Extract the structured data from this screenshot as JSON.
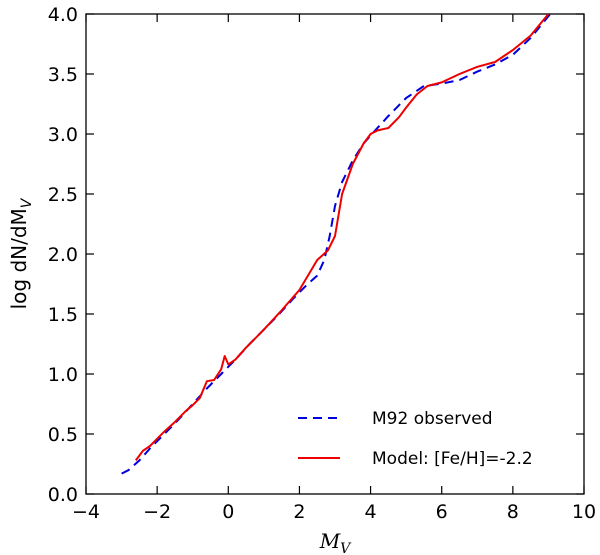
{
  "chart_data": {
    "type": "line",
    "title": "",
    "xlabel": "M_V",
    "ylabel_prefix": "log dN/dM",
    "ylabel_sub": "V",
    "xlabel_main": "M",
    "xlabel_sub": "V",
    "xlim": [
      -4,
      10
    ],
    "ylim": [
      0.0,
      4.0
    ],
    "xticks": [
      "−4",
      "−2",
      "0",
      "2",
      "4",
      "6",
      "8",
      "10"
    ],
    "xtick_values": [
      -4,
      -2,
      0,
      2,
      4,
      6,
      8,
      10
    ],
    "yticks": [
      "0.0",
      "0.5",
      "1.0",
      "1.5",
      "2.0",
      "2.5",
      "3.0",
      "3.5",
      "4.0"
    ],
    "ytick_values": [
      0.0,
      0.5,
      1.0,
      1.5,
      2.0,
      2.5,
      3.0,
      3.5,
      4.0
    ],
    "legend_position": "lower-right",
    "series": [
      {
        "name": "M92 observed",
        "style": "dashed",
        "color": "#0000dd",
        "x": [
          -3.0,
          -2.8,
          -2.5,
          -2.2,
          -1.8,
          -1.4,
          -1.0,
          -0.6,
          -0.2,
          0.2,
          0.6,
          1.0,
          1.4,
          1.8,
          2.2,
          2.5,
          2.7,
          2.85,
          3.0,
          3.2,
          3.5,
          3.8,
          4.1,
          4.5,
          5.0,
          5.5,
          6.0,
          6.5,
          7.0,
          7.5,
          8.0,
          8.5,
          9.05
        ],
        "y": [
          0.17,
          0.2,
          0.28,
          0.38,
          0.5,
          0.62,
          0.75,
          0.88,
          1.0,
          1.12,
          1.25,
          1.37,
          1.49,
          1.62,
          1.74,
          1.82,
          1.95,
          2.15,
          2.4,
          2.6,
          2.78,
          2.92,
          3.02,
          3.15,
          3.3,
          3.4,
          3.42,
          3.45,
          3.52,
          3.58,
          3.66,
          3.8,
          4.0
        ]
      },
      {
        "name": "Model: [Fe/H]=-2.2",
        "style": "solid",
        "color": "#ee0000",
        "x": [
          -2.6,
          -2.4,
          -2.2,
          -2.0,
          -1.8,
          -1.5,
          -1.2,
          -1.0,
          -0.8,
          -0.6,
          -0.4,
          -0.2,
          -0.1,
          0.0,
          0.2,
          0.5,
          1.0,
          1.5,
          2.0,
          2.3,
          2.5,
          2.8,
          3.0,
          3.2,
          3.5,
          3.8,
          4.0,
          4.2,
          4.5,
          4.8,
          5.0,
          5.3,
          5.6,
          6.0,
          6.5,
          7.0,
          7.5,
          8.0,
          8.5,
          9.0
        ],
        "y": [
          0.28,
          0.36,
          0.4,
          0.46,
          0.52,
          0.6,
          0.69,
          0.74,
          0.8,
          0.94,
          0.95,
          1.04,
          1.15,
          1.08,
          1.12,
          1.22,
          1.37,
          1.53,
          1.7,
          1.85,
          1.95,
          2.03,
          2.15,
          2.5,
          2.75,
          2.92,
          3.0,
          3.03,
          3.05,
          3.14,
          3.22,
          3.33,
          3.4,
          3.43,
          3.5,
          3.56,
          3.6,
          3.7,
          3.82,
          4.0
        ]
      }
    ]
  }
}
